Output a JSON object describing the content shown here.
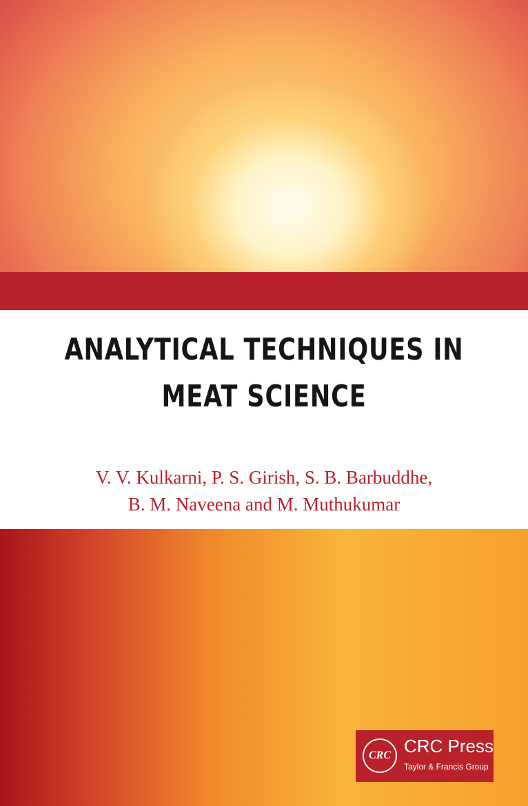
{
  "cover": {
    "title_line1": "ANALYTICAL TECHNIQUES IN",
    "title_line2": "MEAT SCIENCE",
    "authors_line1": "V. V. Kulkarni, P. S. Girish, S. B. Barbuddhe,",
    "authors_line2": "B. M. Naveena and M. Muthukumar",
    "band_color": "#b9212b"
  },
  "publisher": {
    "seal": "CRC",
    "name": "CRC Press",
    "group": "Taylor & Francis Group"
  }
}
